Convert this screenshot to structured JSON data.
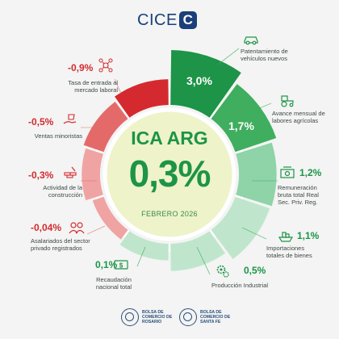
{
  "header": {
    "logo_text": "CICE",
    "logo_mark": "C"
  },
  "center": {
    "title": "ICA ARG",
    "value": "0,3%",
    "date": "FEBRERO 2026"
  },
  "colors": {
    "green_dark": "#1d9447",
    "green_mid": "#3fae5e",
    "green_light": "#8fd3a8",
    "green_pale": "#bfe6cc",
    "red_dark": "#d42a2f",
    "red_mid": "#e46a6a",
    "red_light": "#f0a3a3",
    "inner_circle": "#eef3c9"
  },
  "chart_data": {
    "type": "pie",
    "title": "ICA ARG",
    "series": [
      {
        "label": "Patentamiento de vehículos nuevos",
        "value": 3.0,
        "value_text": "3,0%",
        "icon": "car-icon"
      },
      {
        "label": "Avance mensual de labores agrícolas",
        "value": 1.7,
        "value_text": "1,7%",
        "icon": "tractor-icon"
      },
      {
        "label": "Remuneración bruta total Real Sec. Priv. Reg.",
        "value": 1.2,
        "value_text": "1,2%",
        "icon": "money-icon"
      },
      {
        "label": "Importaciones totales de bienes",
        "value": 1.1,
        "value_text": "1,1%",
        "icon": "ship-icon"
      },
      {
        "label": "Producción Industrial",
        "value": 0.5,
        "value_text": "0,5%",
        "icon": "gears-icon"
      },
      {
        "label": "Recaudación nacional total",
        "value": 0.1,
        "value_text": "0,1%",
        "icon": "banknote-icon"
      },
      {
        "label": "Asalariados del sector privado registrados",
        "value": -0.04,
        "value_text": "-0,04%",
        "icon": "people-icon"
      },
      {
        "label": "Actividad de la construcción",
        "value": -0.3,
        "value_text": "-0,3%",
        "icon": "bricks-icon"
      },
      {
        "label": "Ventas minoristas",
        "value": -0.5,
        "value_text": "-0,5%",
        "icon": "shopping-hand-icon"
      },
      {
        "label": "Tasa de entrada al mercado laboral",
        "value": -0.9,
        "value_text": "-0,9%",
        "icon": "network-icon"
      }
    ]
  },
  "footer": {
    "left_logo": "BOLSA DE COMERCIO DE ROSARIO",
    "right_logo": "BOLSA DE COMERCIO DE SANTA FE"
  }
}
